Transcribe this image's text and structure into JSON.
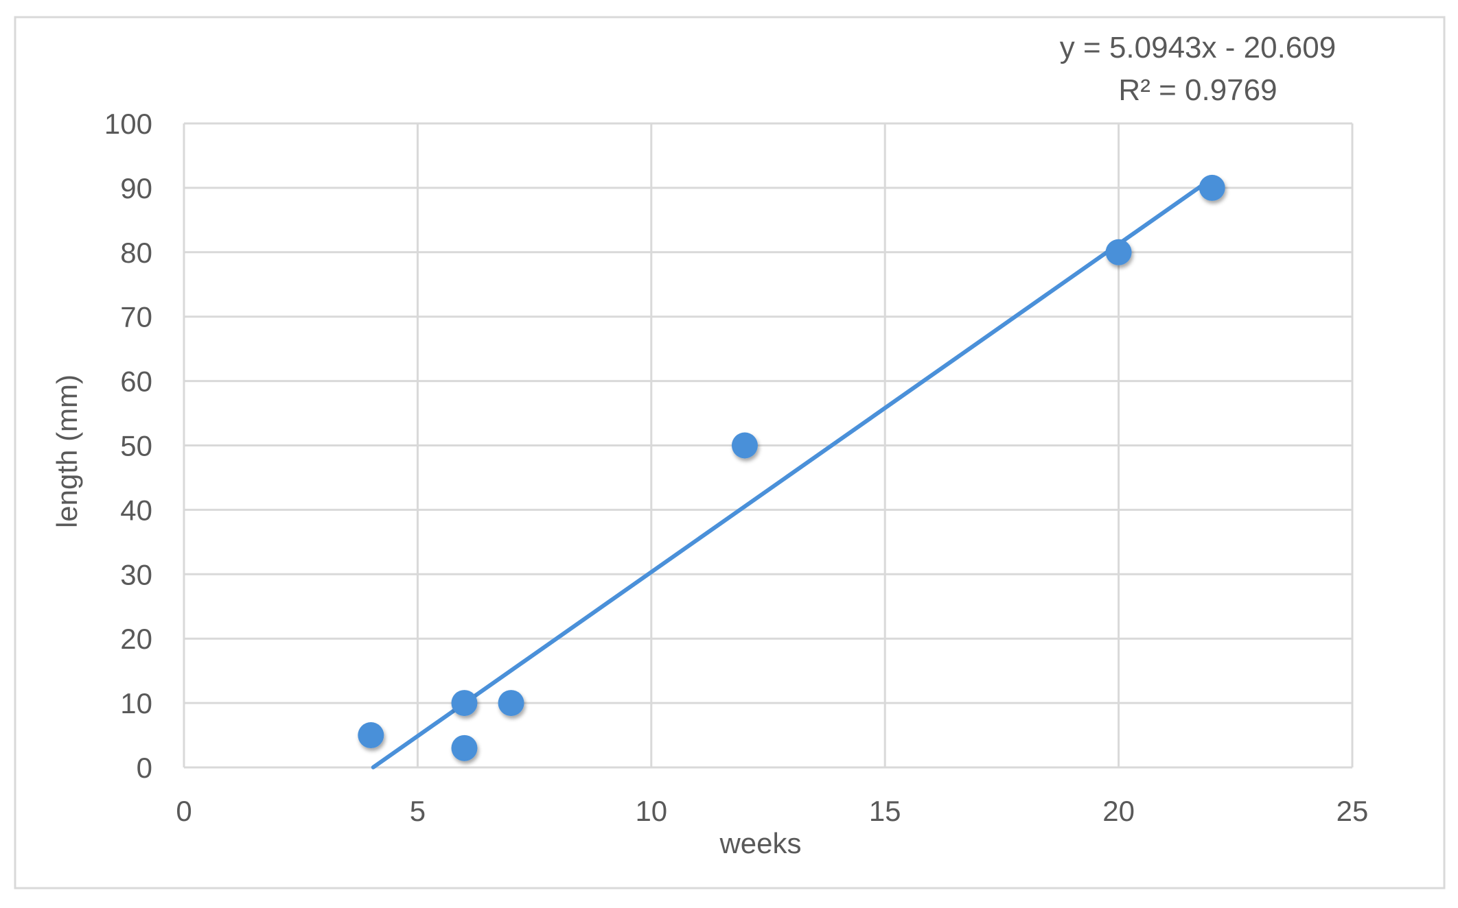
{
  "chart_data": {
    "type": "scatter",
    "title": "",
    "xlabel": "weeks",
    "ylabel": "length (mm)",
    "xlim": [
      0,
      25
    ],
    "ylim": [
      0,
      100
    ],
    "x_ticks": [
      0,
      5,
      10,
      15,
      20,
      25
    ],
    "y_ticks": [
      0,
      10,
      20,
      30,
      40,
      50,
      60,
      70,
      80,
      90,
      100
    ],
    "x_tick_labels": [
      "0",
      "5",
      "10",
      "15",
      "20",
      "25"
    ],
    "y_tick_labels": [
      "0",
      "10",
      "20",
      "30",
      "40",
      "50",
      "60",
      "70",
      "80",
      "90",
      "100"
    ],
    "grid": true,
    "legend": "none",
    "series": [
      {
        "x": [
          4,
          6,
          6,
          7,
          12,
          20,
          22
        ],
        "y": [
          5,
          10,
          3,
          10,
          50,
          80,
          90
        ],
        "color": "#4a90d9"
      }
    ],
    "trendline": {
      "type": "linear",
      "slope": 5.0943,
      "intercept": -20.609,
      "x_range": [
        4.05,
        22
      ],
      "color": "#4a90d9"
    },
    "annotations": {
      "equation": "y = 5.0943x - 20.609",
      "r_squared": "R² = 0.9769"
    }
  }
}
